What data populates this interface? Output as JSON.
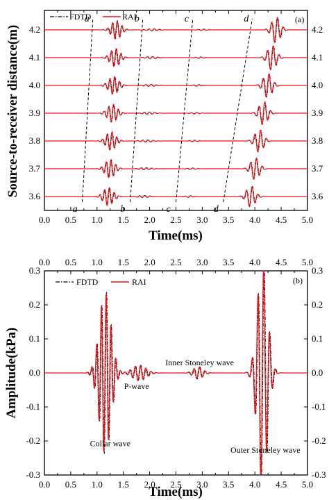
{
  "chart_data": [
    {
      "type": "line",
      "panel_label": "(a)",
      "xlabel": "Time(ms)",
      "ylabel": "Source-to-receiver distance(m)",
      "xlim": [
        0.0,
        5.0
      ],
      "ylim": [
        3.55,
        4.27
      ],
      "xticks": [
        "0.0",
        "0.5",
        "1.0",
        "1.5",
        "2.0",
        "2.5",
        "3.0",
        "3.5",
        "4.0",
        "4.5",
        "5.0"
      ],
      "yticks": [
        "3.6",
        "3.7",
        "3.8",
        "3.9",
        "4.0",
        "4.1",
        "4.2"
      ],
      "legend": {
        "position": "top-left",
        "entries": [
          "FDTD",
          "RAI"
        ]
      },
      "series": [
        {
          "name": "FDTD",
          "style": "dash-dot",
          "color": "#000000"
        },
        {
          "name": "RAI",
          "style": "solid",
          "color": "#e8151b"
        }
      ],
      "traces": [
        {
          "distance": 3.6,
          "onsets": {
            "collar": 0.76,
            "p": 1.63,
            "stoneley_inner": 2.5,
            "stoneley_outer": 3.42
          }
        },
        {
          "distance": 3.7,
          "onsets": {
            "collar": 0.79,
            "p": 1.66,
            "stoneley_inner": 2.54,
            "stoneley_outer": 3.5
          }
        },
        {
          "distance": 3.8,
          "onsets": {
            "collar": 0.81,
            "p": 1.69,
            "stoneley_inner": 2.58,
            "stoneley_outer": 3.58
          }
        },
        {
          "distance": 3.9,
          "onsets": {
            "collar": 0.84,
            "p": 1.72,
            "stoneley_inner": 2.62,
            "stoneley_outer": 3.66
          }
        },
        {
          "distance": 4.0,
          "onsets": {
            "collar": 0.86,
            "p": 1.75,
            "stoneley_inner": 2.66,
            "stoneley_outer": 3.74
          }
        },
        {
          "distance": 4.1,
          "onsets": {
            "collar": 0.89,
            "p": 1.78,
            "stoneley_inner": 2.7,
            "stoneley_outer": 3.82
          }
        },
        {
          "distance": 4.2,
          "onsets": {
            "collar": 0.91,
            "p": 1.81,
            "stoneley_inner": 2.75,
            "stoneley_outer": 3.9
          }
        }
      ],
      "moveout_lines": [
        {
          "label": "a",
          "t_start": 0.72,
          "t_end": 0.92
        },
        {
          "label": "b",
          "t_start": 1.63,
          "t_end": 1.87
        },
        {
          "label": "c",
          "t_start": 2.5,
          "t_end": 2.82
        },
        {
          "label": "d",
          "t_start": 3.4,
          "t_end": 3.95
        }
      ]
    },
    {
      "type": "line",
      "panel_label": "(b)",
      "xlabel": "Time(ms)",
      "ylabel": "Amplitude(kPa)",
      "xlim": [
        0.0,
        5.0
      ],
      "ylim": [
        -0.3,
        0.3
      ],
      "xticks": [
        "0.0",
        "0.5",
        "1.0",
        "1.5",
        "2.0",
        "2.5",
        "3.0",
        "3.5",
        "4.0",
        "4.5",
        "5.0"
      ],
      "yticks": [
        "0.3",
        "0.2",
        "0.1",
        "0.0",
        "-0.1",
        "-0.2",
        "-0.3"
      ],
      "legend": {
        "position": "top-left",
        "entries": [
          "FDTD",
          "RAI"
        ]
      },
      "series": [
        {
          "name": "FDTD",
          "style": "dash-dot",
          "color": "#000000"
        },
        {
          "name": "RAI",
          "style": "solid",
          "color": "#e8151b"
        }
      ],
      "annotations": [
        {
          "text": "Collar wave",
          "x": 1.25,
          "y": -0.215
        },
        {
          "text": "P-wave",
          "x": 1.75,
          "y": -0.047
        },
        {
          "text": "Inner Stoneley wave",
          "x": 2.95,
          "y": 0.022
        },
        {
          "text": "Outer Stoneley wave",
          "x": 4.2,
          "y": -0.235
        }
      ],
      "wave_packets": [
        {
          "t0": 1.15,
          "width": 0.11,
          "freq": 11.0,
          "amp": 0.17
        },
        {
          "t0": 1.8,
          "width": 0.13,
          "freq": 10.0,
          "amp": 0.016
        },
        {
          "t0": 2.92,
          "width": 0.09,
          "freq": 9.5,
          "amp": 0.013
        },
        {
          "t0": 4.14,
          "width": 0.095,
          "freq": 9.0,
          "amp": 0.24
        }
      ]
    }
  ]
}
